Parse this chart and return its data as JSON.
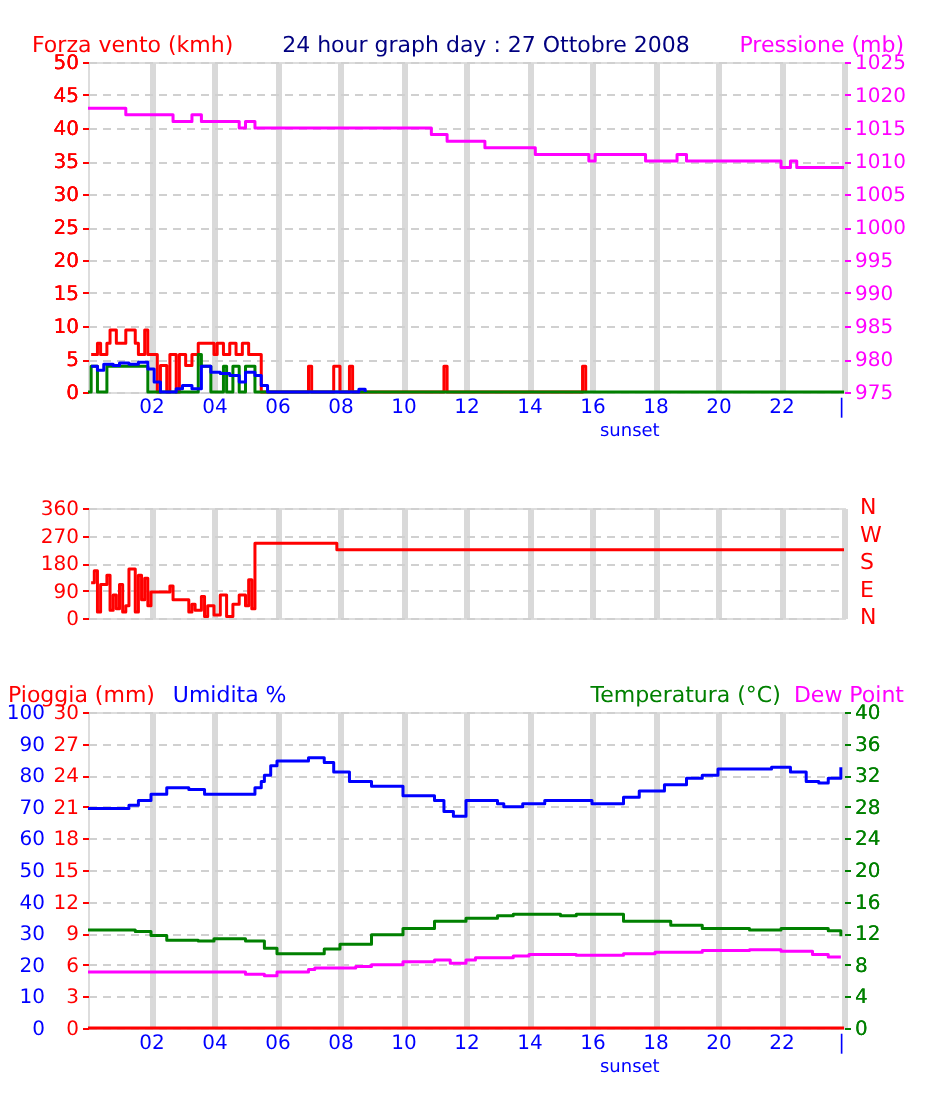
{
  "chart_data": [
    {
      "type": "step",
      "title": "24 hour graph day : 27 Ottobre 2008",
      "ylabel": "Forza vento (kmh)",
      "y2label": "Pressione (mb)",
      "grid": true,
      "xlim": [
        0,
        24
      ],
      "xticks": [
        {
          "value": 2,
          "label": "02"
        },
        {
          "value": 4,
          "label": "04"
        },
        {
          "value": 6,
          "label": "06"
        },
        {
          "value": 8,
          "label": "08"
        },
        10,
        12,
        14,
        16,
        18,
        20,
        22,
        {
          "value": 24,
          "label": "|"
        }
      ],
      "ylim": [
        0,
        50
      ],
      "yticks": [
        0,
        5,
        10,
        15,
        20,
        25,
        30,
        35,
        40,
        45,
        50
      ],
      "y2lim": [
        975,
        1025
      ],
      "y2ticks": [
        975,
        980,
        985,
        990,
        995,
        1000,
        1005,
        1010,
        1015,
        1020,
        1025
      ],
      "annotations": [
        {
          "text": "sunset",
          "x": 17.2,
          "y": 0
        }
      ],
      "series": [
        {
          "color": "#ff0000",
          "x": [
            0.1,
            0.3,
            0.4,
            0.6,
            0.7,
            0.9,
            1.2,
            1.5,
            1.6,
            1.8,
            1.9,
            2.2,
            2.3,
            2.5,
            2.6,
            2.8,
            2.9,
            3.1,
            3.3,
            3.5,
            4.0,
            4.1,
            4.3,
            4.5,
            4.7,
            4.9,
            5.1,
            5.5,
            7.0,
            7.1,
            7.8,
            8.0,
            8.3,
            8.4,
            11.3,
            11.4,
            15.7,
            15.8
          ],
          "values": [
            5.7,
            7.4,
            5.7,
            7.4,
            9.4,
            7.4,
            9.4,
            7.4,
            5.7,
            9.4,
            5.7,
            0,
            4,
            0,
            5.7,
            0,
            5.7,
            4,
            5.7,
            7.4,
            5.7,
            7.4,
            5.7,
            7.4,
            5.7,
            7.4,
            5.7,
            0,
            3.9,
            0,
            3.9,
            0,
            3.9,
            0,
            3.9,
            0,
            3.9,
            0
          ]
        },
        {
          "color": "#008000",
          "x": [
            0,
            0.1,
            0.3,
            0.6,
            1.9,
            2.0,
            3.5,
            3.6,
            3.9,
            4.3,
            4.4,
            4.6,
            4.8,
            5.0,
            5.3,
            24
          ],
          "values": [
            0,
            3.9,
            0,
            3.9,
            0,
            0,
            5.7,
            3.9,
            0,
            3.9,
            0,
            3.9,
            0,
            3.9,
            0,
            0
          ]
        },
        {
          "color": "#0000ff",
          "x": [
            0.1,
            0.3,
            0.5,
            0.8,
            1.0,
            1.3,
            1.6,
            1.9,
            2.1,
            2.3,
            2.8,
            3.0,
            3.3,
            3.6,
            3.9,
            4.2,
            4.5,
            4.8,
            5.0,
            5.3,
            5.5,
            5.7,
            8.6,
            8.8
          ],
          "values": [
            3.9,
            3.3,
            4.2,
            4.0,
            4.4,
            4.2,
            4.5,
            3.5,
            1.5,
            0,
            0.5,
            1.0,
            0.5,
            3.9,
            3.0,
            2.8,
            2.5,
            1.5,
            3.0,
            2.5,
            1.0,
            0,
            0.4,
            0
          ]
        },
        {
          "color": "#ff00ff",
          "axis": "y2",
          "x": [
            0,
            1.2,
            2.7,
            3.3,
            3.6,
            4.8,
            5.0,
            5.3,
            10.9,
            11.4,
            12.6,
            14.2,
            15.9,
            16.1,
            17.7,
            18.7,
            19.0,
            22.0,
            22.3,
            22.5,
            24
          ],
          "values": [
            1018,
            1017,
            1016,
            1017,
            1016,
            1015,
            1016,
            1015,
            1014,
            1013,
            1012,
            1011,
            1010,
            1011,
            1010,
            1011,
            1010,
            1009,
            1010,
            1009,
            1009
          ]
        }
      ]
    },
    {
      "type": "step",
      "grid": true,
      "tick_labels": "y",
      "xlim": [
        0,
        24
      ],
      "ylim": [
        0,
        360
      ],
      "yticks": [
        0,
        90,
        180,
        270,
        360
      ],
      "annotations": [
        "N",
        "W",
        "S",
        "E",
        "N"
      ],
      "series": [
        {
          "color": "#ff0000",
          "x": [
            0.1,
            0.2,
            0.3,
            0.4,
            0.6,
            0.7,
            0.8,
            0.9,
            1.0,
            1.1,
            1.2,
            1.3,
            1.5,
            1.6,
            1.7,
            1.8,
            1.9,
            2.0,
            2.5,
            2.6,
            2.7,
            3.0,
            3.2,
            3.3,
            3.4,
            3.6,
            3.7,
            3.8,
            4.0,
            4.2,
            4.4,
            4.6,
            4.8,
            5.0,
            5.1,
            5.2,
            5.3,
            7.9,
            24
          ],
          "values": [
            115,
            155,
            20,
            110,
            140,
            25,
            75,
            30,
            110,
            20,
            40,
            160,
            20,
            140,
            60,
            130,
            40,
            85,
            85,
            105,
            60,
            60,
            20,
            45,
            25,
            70,
            5,
            40,
            10,
            75,
            5,
            45,
            75,
            40,
            125,
            30,
            245,
            223,
            223
          ]
        }
      ]
    },
    {
      "type": "step",
      "grid": true,
      "xlim": [
        0,
        24
      ],
      "xticks": [
        {
          "value": 2,
          "label": "02"
        },
        {
          "value": 4,
          "label": "04"
        },
        {
          "value": 6,
          "label": "06"
        },
        {
          "value": 8,
          "label": "08"
        },
        10,
        12,
        14,
        16,
        18,
        20,
        22,
        {
          "value": 24,
          "label": "|"
        }
      ],
      "ylim": [
        0,
        100
      ],
      "yticks": [
        0,
        10,
        20,
        30,
        40,
        50,
        60,
        70,
        80,
        90,
        100
      ],
      "y3lim": [
        0,
        30
      ],
      "y3ticks": [
        0,
        3,
        6,
        9,
        12,
        15,
        18,
        21,
        24,
        27,
        30
      ],
      "y2lim": [
        0,
        40
      ],
      "y2ticks": [
        0,
        4,
        8,
        12,
        16,
        20,
        24,
        28,
        32,
        36,
        40
      ],
      "annotations": [
        {
          "text": "sunset",
          "x": 17.2,
          "y": 0
        }
      ],
      "series": [
        {
          "name": "Pioggia (mm)",
          "type": "line",
          "color": "#ff0000",
          "axis": "y3",
          "x": [
            0,
            24
          ],
          "values": [
            0,
            0
          ]
        },
        {
          "name": "Umidita %",
          "color": "#0000ff",
          "x": [
            0,
            1.3,
            1.6,
            2.0,
            2.5,
            3.2,
            3.7,
            5.3,
            5.5,
            5.6,
            5.8,
            6.0,
            7.0,
            7.5,
            7.8,
            8.3,
            9.0,
            10.0,
            11.0,
            11.3,
            11.6,
            12.0,
            13.0,
            13.2,
            13.8,
            14.5,
            15.3,
            16.0,
            16.5,
            17.0,
            17.5,
            18.3,
            19.0,
            19.5,
            20.0,
            21.0,
            21.7,
            22.3,
            22.8,
            23.2,
            23.5,
            23.9
          ],
          "values": [
            69.5,
            70.5,
            72,
            74,
            76,
            75.5,
            74,
            76,
            78,
            80,
            83,
            84.5,
            85.5,
            84,
            81,
            78,
            76.5,
            73.5,
            72,
            68.5,
            67,
            72,
            71,
            70,
            71,
            72,
            72,
            71,
            71,
            73,
            75,
            77,
            79,
            80,
            82,
            82,
            82.5,
            81,
            78,
            77.5,
            79,
            82.5
          ]
        },
        {
          "name": "Temperatura (°C)",
          "color": "#008000",
          "axis": "y2",
          "x": [
            0,
            1.5,
            2.0,
            2.5,
            3.5,
            4.0,
            5.0,
            5.6,
            6.0,
            7.0,
            7.5,
            8.0,
            9.0,
            10.0,
            11.0,
            12.0,
            13.0,
            13.5,
            15.0,
            15.5,
            17.0,
            18.5,
            19.5,
            21.0,
            22.0,
            23.0,
            23.5,
            23.9
          ],
          "values": [
            12.4,
            12.2,
            11.7,
            11.1,
            11.0,
            11.3,
            11.0,
            10.1,
            9.4,
            9.4,
            10.0,
            10.6,
            11.8,
            12.6,
            13.5,
            13.9,
            14.2,
            14.4,
            14.2,
            14.4,
            13.5,
            13.0,
            12.6,
            12.4,
            12.6,
            12.6,
            12.3,
            11.6
          ]
        },
        {
          "name": "Dew Point",
          "color": "#ff00ff",
          "axis": "y2",
          "x": [
            0,
            3.0,
            5.0,
            5.6,
            6.0,
            7.0,
            7.2,
            8.5,
            9.0,
            10.0,
            11.0,
            11.5,
            12.0,
            12.3,
            13.5,
            14.0,
            15.5,
            17.0,
            18.0,
            19.5,
            21.0,
            22.0,
            23.0,
            23.5,
            23.9
          ],
          "values": [
            7.1,
            7.1,
            6.8,
            6.6,
            7.1,
            7.4,
            7.6,
            7.8,
            8.0,
            8.4,
            8.6,
            8.2,
            8.6,
            8.9,
            9.1,
            9.3,
            9.2,
            9.4,
            9.6,
            9.8,
            9.9,
            9.7,
            9.3,
            9.0,
            9.0
          ]
        }
      ]
    }
  ]
}
